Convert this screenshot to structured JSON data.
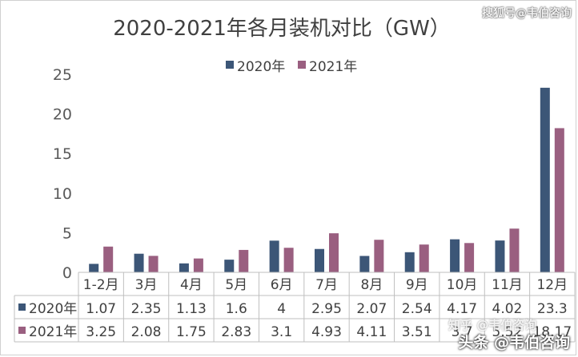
{
  "chart_data": {
    "type": "bar",
    "title": "2020-2021年各月装机对比（GW）",
    "categories": [
      "1-2月",
      "3月",
      "4月",
      "5月",
      "6月",
      "7月",
      "8月",
      "9月",
      "10月",
      "11月",
      "12月"
    ],
    "series": [
      {
        "name": "2020年",
        "color": "#3c5677",
        "values": [
          1.07,
          2.35,
          1.13,
          1.6,
          4,
          2.95,
          2.07,
          2.54,
          4.17,
          4.02,
          23.3
        ]
      },
      {
        "name": "2021年",
        "color": "#9a5f80",
        "values": [
          3.25,
          2.08,
          1.75,
          2.83,
          3.1,
          4.93,
          4.11,
          3.51,
          3.7,
          5.52,
          18.2
        ]
      }
    ],
    "table_values": [
      [
        "1.07",
        "2.35",
        "1.13",
        "1.6",
        "4",
        "2.95",
        "2.07",
        "2.54",
        "4.17",
        "4.02",
        "23.3"
      ],
      [
        "3.25",
        "2.08",
        "1.75",
        "2.83",
        "3.1",
        "4.93",
        "4.11",
        "3.51",
        "3.7",
        "5.52",
        "18.17"
      ]
    ],
    "ylim": [
      0,
      25
    ],
    "yticks": [
      0,
      5,
      10,
      15,
      20,
      25
    ],
    "grid": false,
    "legend_position": "top-center",
    "table_below": true
  },
  "watermarks": {
    "top": "搜狐号@韦伯咨询",
    "bottom": "头条 @韦伯咨询",
    "faint": "知乎 @韦伯咨询"
  }
}
